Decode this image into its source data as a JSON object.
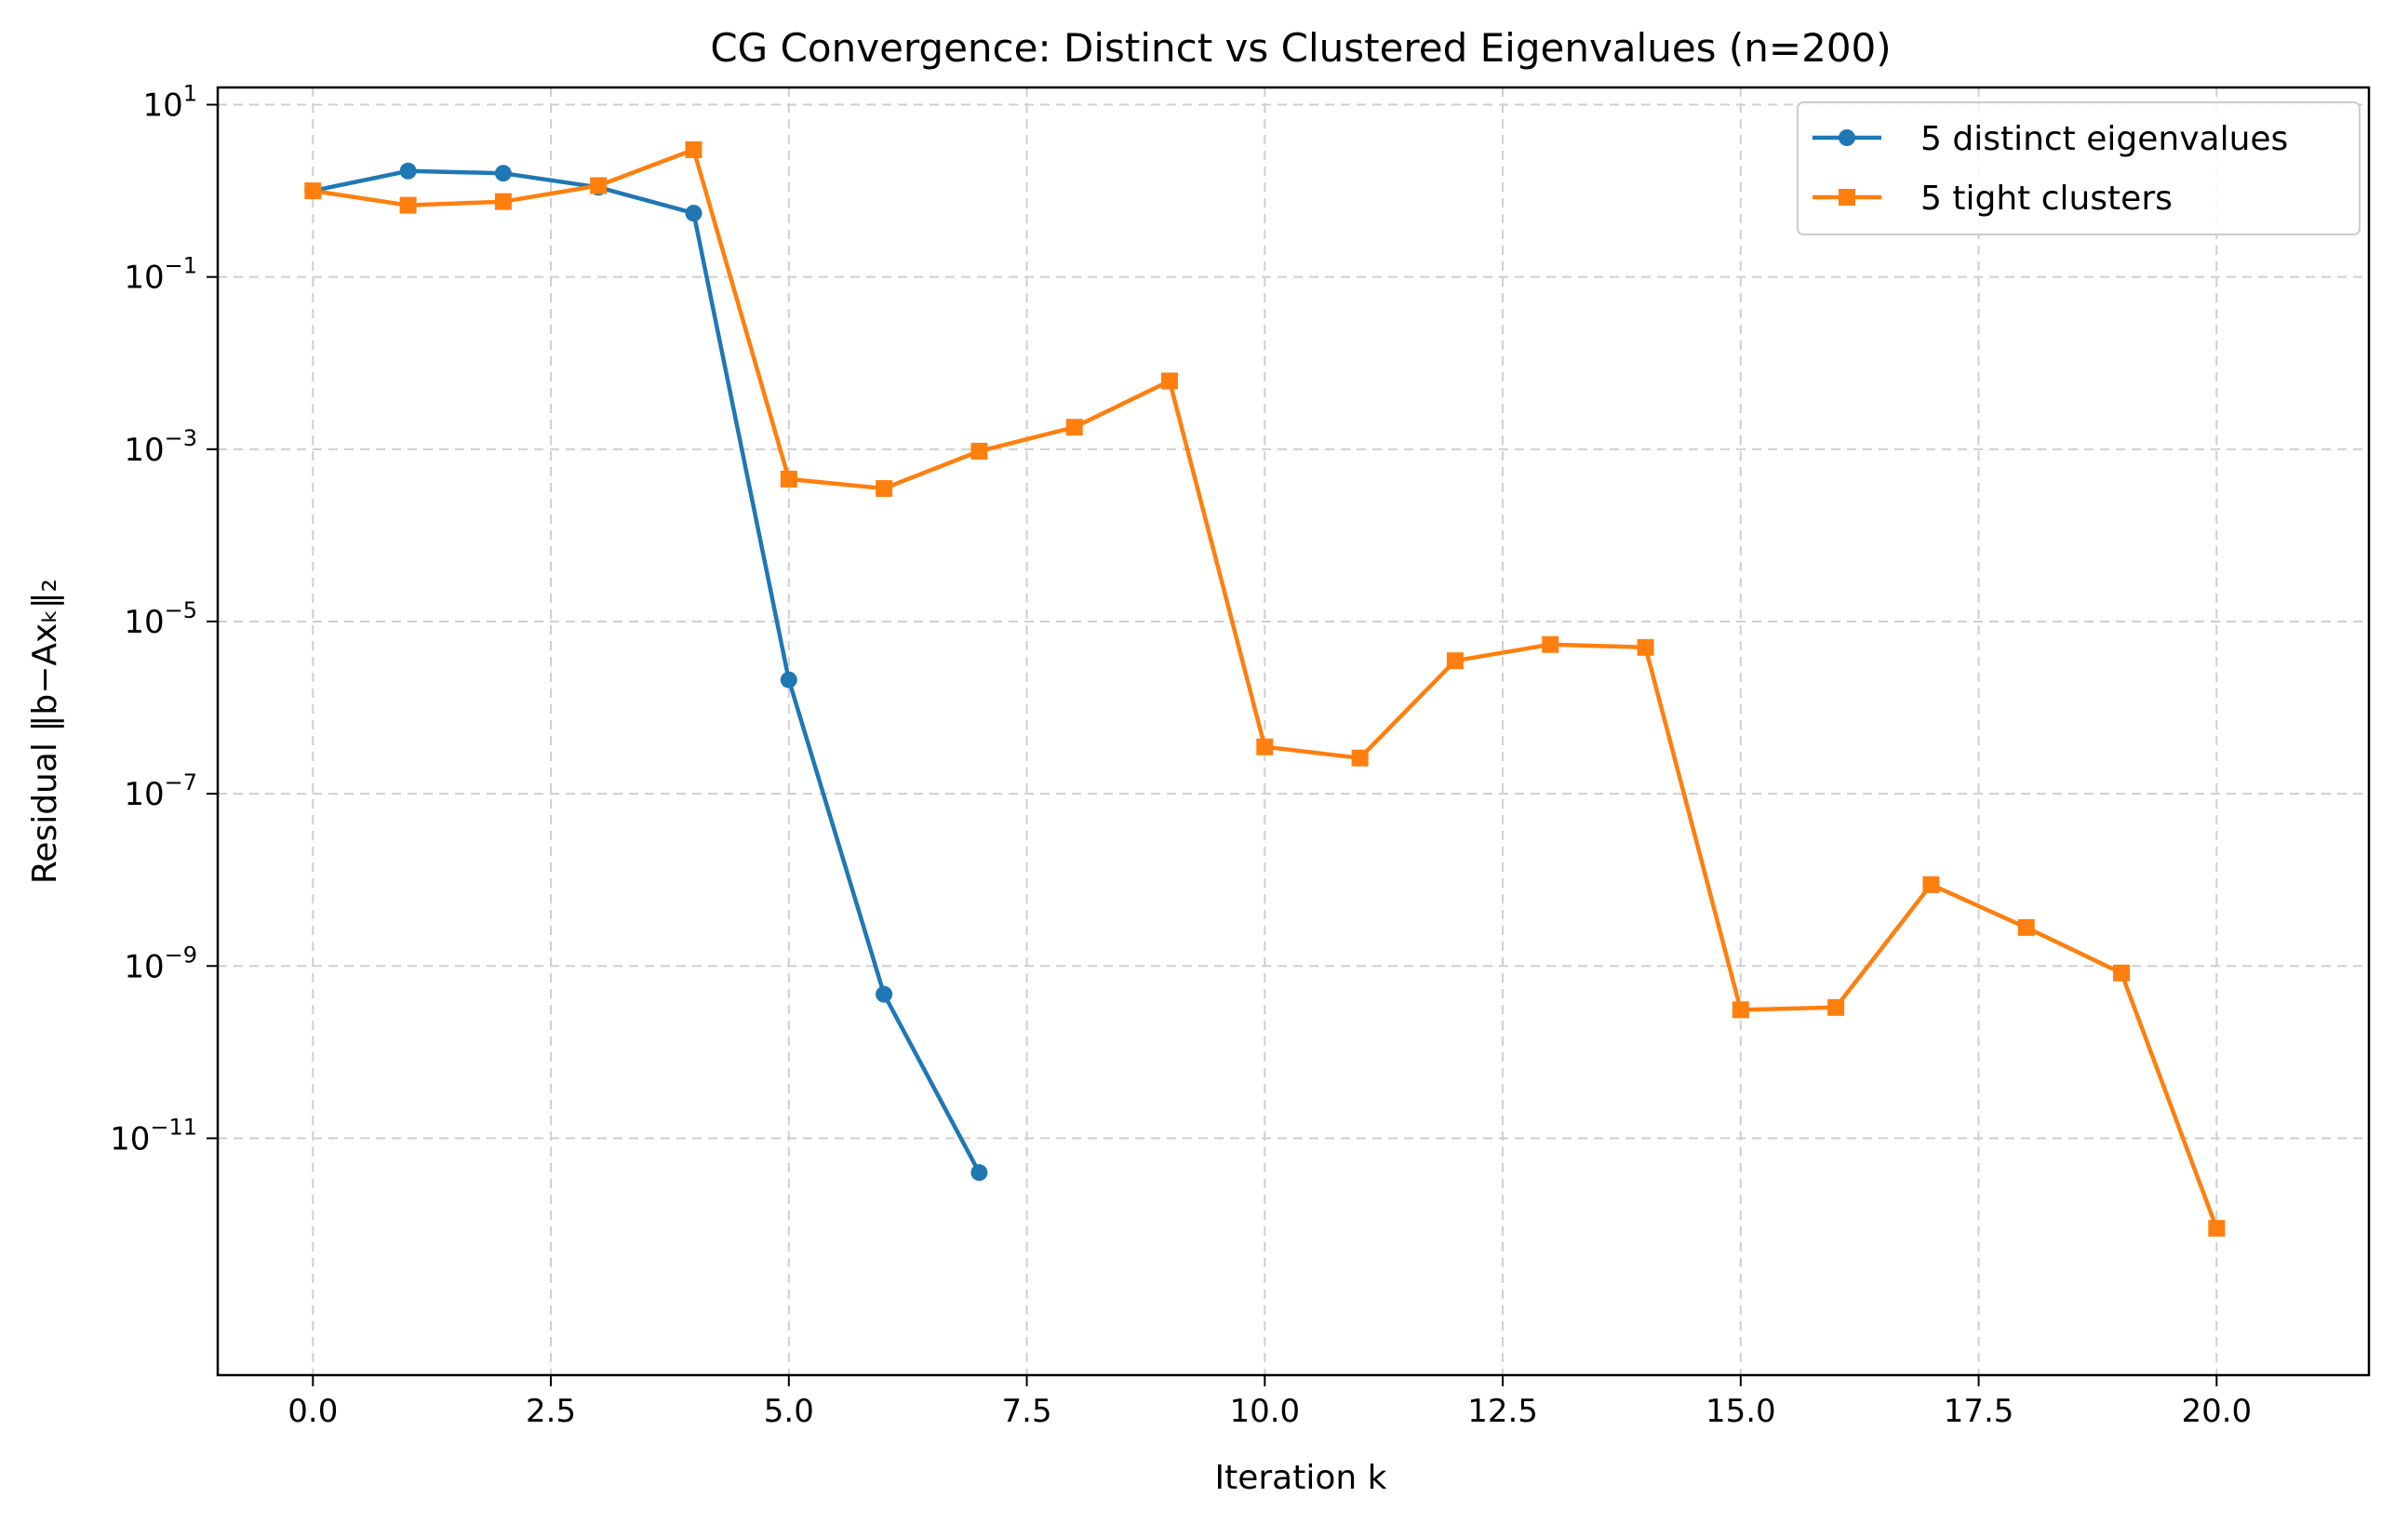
{
  "chart_data": {
    "type": "line",
    "title": "CG Convergence: Distinct vs Clustered Eigenvalues (n=200)",
    "xlabel": "Iteration k",
    "ylabel": "Residual ‖b−Axₖ‖₂",
    "xlim": [
      -1,
      21.6
    ],
    "ylim_log10": [
      -13.75,
      1.2
    ],
    "yscale": "log",
    "grid": true,
    "legend_position": "top-right",
    "x_ticks": [
      0.0,
      2.5,
      5.0,
      7.5,
      10.0,
      12.5,
      15.0,
      17.5,
      20.0
    ],
    "x_tick_labels": [
      "0.0",
      "2.5",
      "5.0",
      "7.5",
      "10.0",
      "12.5",
      "15.0",
      "17.5",
      "20.0"
    ],
    "y_tick_exponents": [
      1,
      -1,
      -3,
      -5,
      -7,
      -9,
      -11
    ],
    "y_tick_base": "10",
    "y_tick_exponent_labels": [
      "1",
      "−1",
      "−3",
      "−5",
      "−7",
      "−9",
      "−11"
    ],
    "series": [
      {
        "name": "5 distinct eigenvalues",
        "color": "#1f77b4",
        "marker": "circle",
        "x": [
          0,
          1,
          2,
          3,
          4,
          5,
          6,
          7
        ],
        "y": [
          1.0,
          1.7,
          1.6,
          1.1,
          0.55,
          2.1e-06,
          4.7e-10,
          4e-12
        ]
      },
      {
        "name": "5 tight clusters",
        "color": "#ff7f0e",
        "marker": "square",
        "x": [
          0,
          1,
          2,
          3,
          4,
          5,
          6,
          7,
          8,
          9,
          10,
          11,
          12,
          13,
          14,
          15,
          16,
          17,
          18,
          19,
          20
        ],
        "y": [
          1.0,
          0.68,
          0.75,
          1.15,
          3.0,
          0.00045,
          0.00035,
          0.00095,
          0.0018,
          0.0062,
          3.5e-07,
          2.6e-07,
          3.5e-06,
          5.4e-06,
          5e-06,
          3.1e-10,
          3.3e-10,
          8.8e-09,
          2.8e-09,
          8.3e-10,
          9e-13
        ]
      }
    ]
  }
}
